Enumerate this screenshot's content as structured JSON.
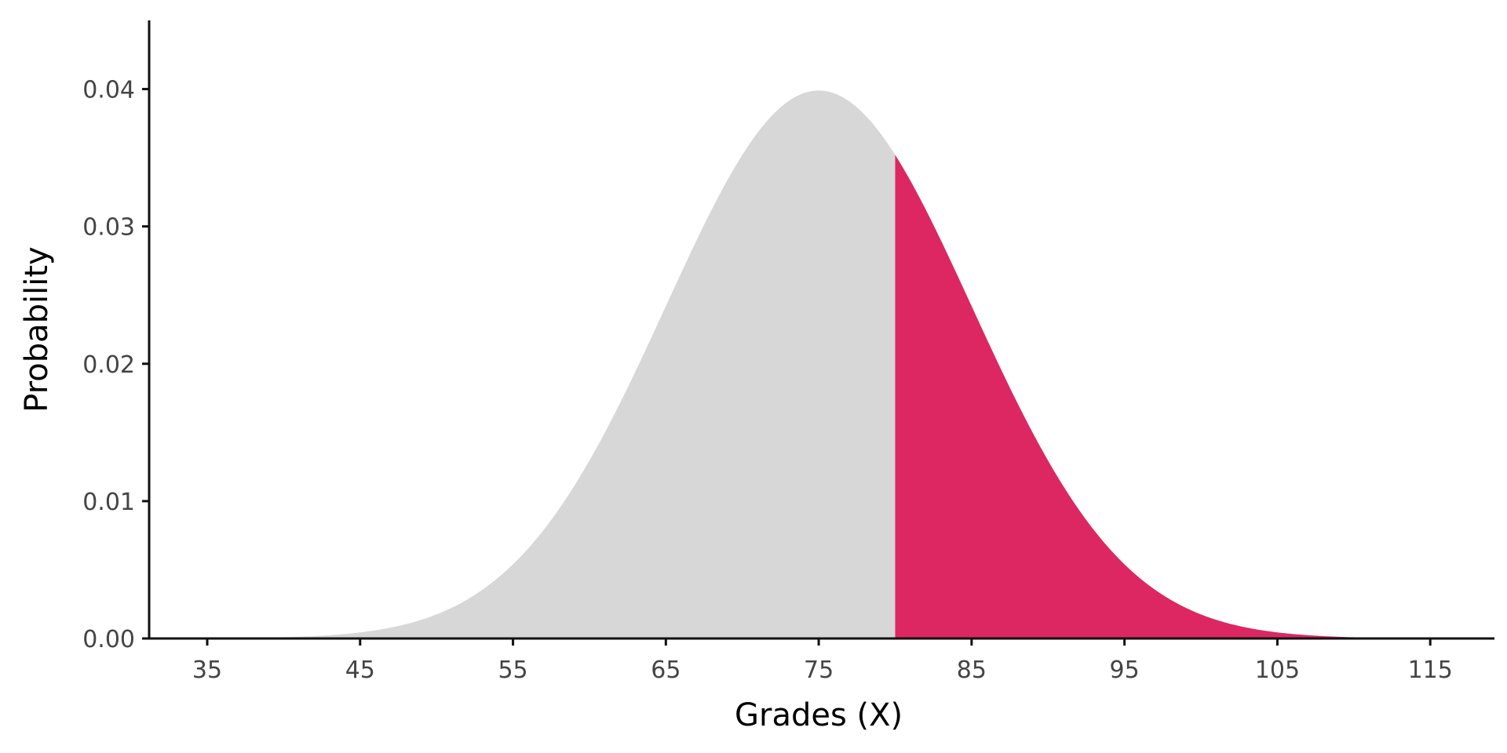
{
  "chart_data": {
    "type": "area",
    "title": "",
    "xlabel": "Grades (X)",
    "ylabel": "Probability",
    "distribution": {
      "name": "normal",
      "mean": 75,
      "sd": 10
    },
    "x_range": [
      31.2,
      119.2
    ],
    "ylim": [
      0,
      0.045
    ],
    "x_ticks": [
      35,
      45,
      55,
      65,
      75,
      85,
      95,
      105,
      115
    ],
    "y_ticks": [
      0,
      0.01,
      0.02,
      0.03,
      0.04
    ],
    "y_tick_labels": [
      "0.00",
      "0.01",
      "0.02",
      "0.03",
      "0.04"
    ],
    "shaded_threshold": 80,
    "regions": [
      {
        "range": [
          31.2,
          80
        ],
        "color": "#d7d7d7"
      },
      {
        "range": [
          80,
          119.2
        ],
        "color": "#dc2762"
      }
    ],
    "grid": false
  }
}
